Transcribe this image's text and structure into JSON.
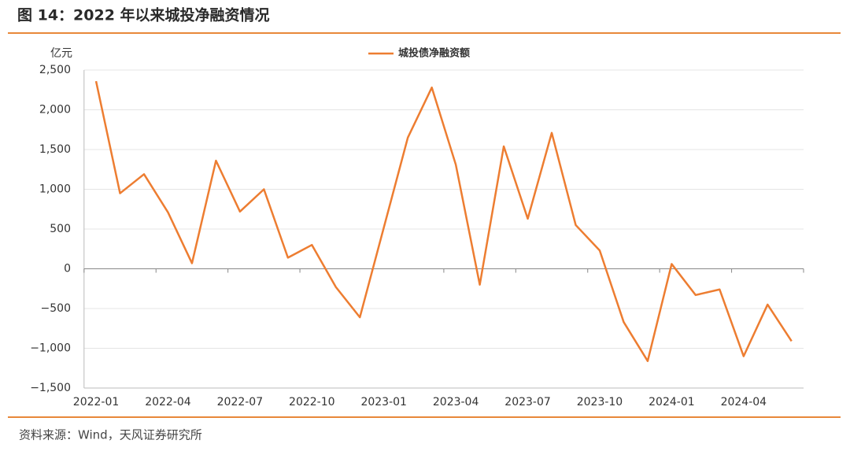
{
  "chart_data": {
    "type": "line",
    "title": "图 14：2022 年以来城投净融资情况",
    "y_axis_label": "亿元",
    "source": "资料来源：Wind，天风证券研究所",
    "categories": [
      "2022-01",
      null,
      null,
      "2022-04",
      null,
      null,
      "2022-07",
      null,
      null,
      "2022-10",
      null,
      null,
      "2023-01",
      null,
      null,
      "2023-04",
      null,
      null,
      "2023-07",
      null,
      null,
      "2023-10",
      null,
      null,
      "2024-01",
      null,
      null,
      "2024-04",
      null,
      null
    ],
    "series": [
      {
        "name": "城投债净融资额",
        "color": "#ed7d31",
        "values": [
          2360,
          950,
          1190,
          710,
          70,
          1360,
          720,
          1000,
          140,
          300,
          -230,
          -610,
          520,
          1650,
          2280,
          1310,
          -200,
          1540,
          630,
          1710,
          550,
          230,
          -670,
          -1160,
          60,
          -330,
          -260,
          -1100,
          -450,
          -910
        ]
      }
    ],
    "ylim": [
      -1500,
      2500
    ],
    "yticks": [
      {
        "value": -1500,
        "label": "−1,500"
      },
      {
        "value": -1000,
        "label": "−1,000"
      },
      {
        "value": -500,
        "label": "−500"
      },
      0,
      500,
      {
        "value": 1000,
        "label": "1,000"
      },
      {
        "value": 1500,
        "label": "1,500"
      },
      {
        "value": 2000,
        "label": "2,000"
      },
      {
        "value": 2500,
        "label": "2,500"
      }
    ],
    "grid": true,
    "legend": "top"
  }
}
